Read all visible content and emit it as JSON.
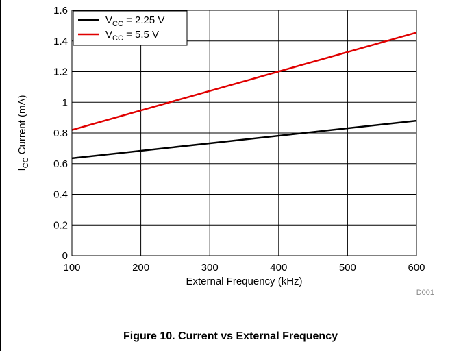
{
  "chart_data": {
    "type": "line",
    "xlabel": "External Frequency (kHz)",
    "ylabel": {
      "pre": "I",
      "sub": "CC",
      "post": " Current (mA)"
    },
    "xlim": [
      100,
      600
    ],
    "ylim": [
      0,
      1.6
    ],
    "xticks": [
      100,
      200,
      300,
      400,
      500,
      600
    ],
    "yticks": [
      0,
      0.2,
      0.4,
      0.6,
      0.8,
      1,
      1.2,
      1.4,
      1.6
    ],
    "grid": true,
    "legend_position": "top-left",
    "series": [
      {
        "legend": {
          "pre": "V",
          "sub": "CC",
          "post": " = 2.25 V"
        },
        "color": "#000000",
        "x": [
          100,
          600
        ],
        "y": [
          0.635,
          0.88
        ]
      },
      {
        "legend": {
          "pre": "V",
          "sub": "CC",
          "post": " = 5.5 V"
        },
        "color": "#e00000",
        "x": [
          100,
          600
        ],
        "y": [
          0.82,
          1.455
        ]
      }
    ],
    "code": "D001"
  },
  "caption": "Figure 10. Current vs External Frequency"
}
